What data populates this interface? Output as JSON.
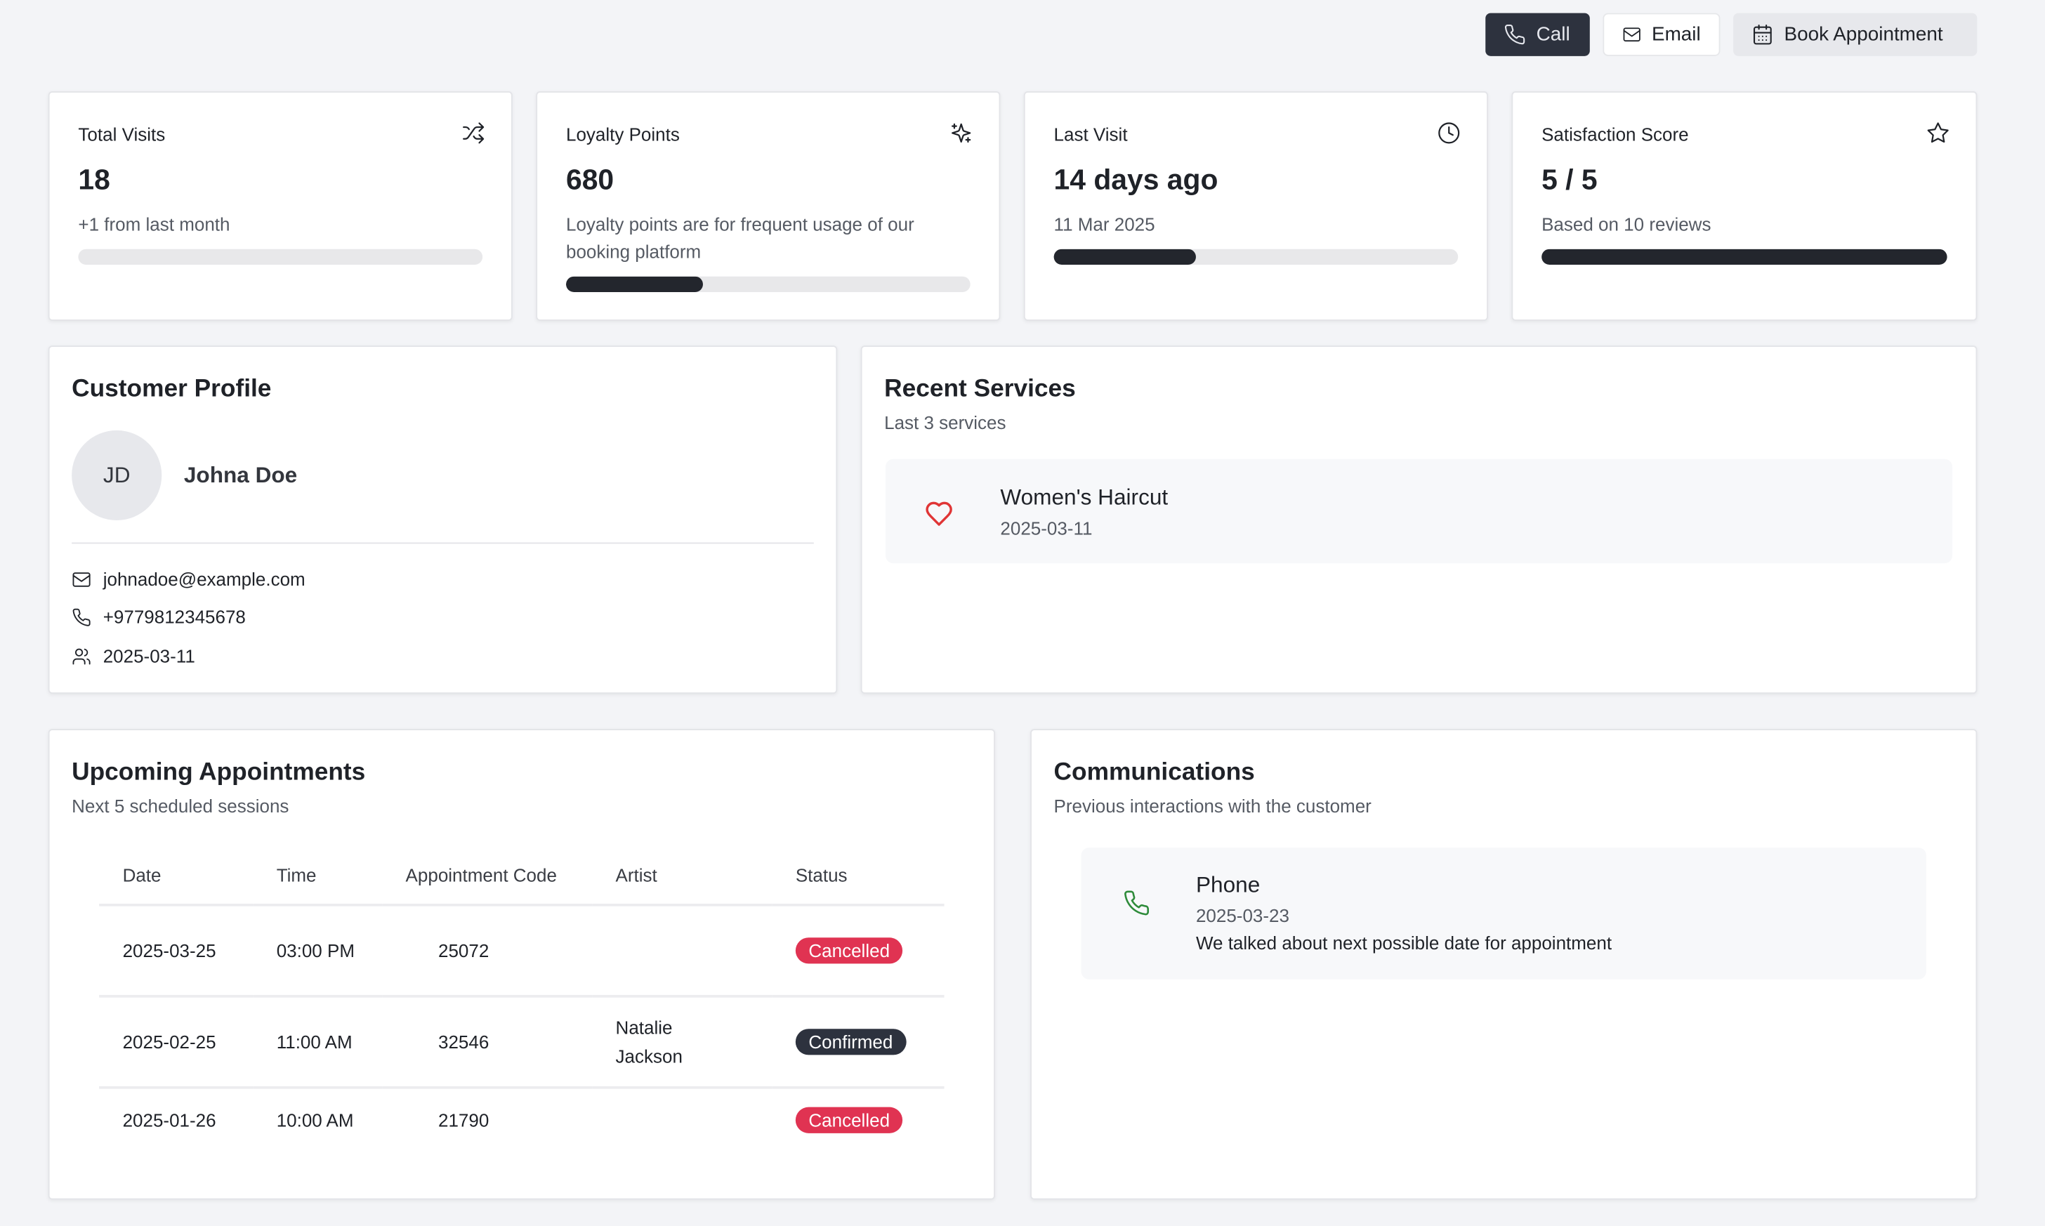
{
  "actions": {
    "call": "Call",
    "email": "Email",
    "book": "Book Appointment"
  },
  "stats": [
    {
      "label": "Total Visits",
      "icon": "shuffle-icon",
      "value": "18",
      "sub": "+1 from last month",
      "progress": 0
    },
    {
      "label": "Loyalty Points",
      "icon": "sparkles-icon",
      "value": "680",
      "sub": "Loyalty points are for frequent usage of our booking platform",
      "progress": 34
    },
    {
      "label": "Last Visit",
      "icon": "clock-icon",
      "value": "14 days ago",
      "sub": "11 Mar 2025",
      "progress": 35
    },
    {
      "label": "Satisfaction Score",
      "icon": "star-icon",
      "value": "5 / 5",
      "sub": "Based on 10 reviews",
      "progress": 100
    }
  ],
  "profile": {
    "title": "Customer Profile",
    "initials": "JD",
    "name": "Johna Doe",
    "email": "johnadoe@example.com",
    "phone": "+9779812345678",
    "date": "2025-03-11"
  },
  "services": {
    "title": "Recent Services",
    "subtitle": "Last 3 services",
    "items": [
      {
        "name": "Women's Haircut",
        "date": "2025-03-11",
        "icon": "heart-icon"
      }
    ]
  },
  "appointments": {
    "title": "Upcoming Appointments",
    "subtitle": "Next 5 scheduled sessions",
    "columns": [
      "Date",
      "Time",
      "Appointment Code",
      "Artist",
      "Status"
    ],
    "rows": [
      {
        "date": "2025-03-25",
        "time": "03:00 PM",
        "code": "25072",
        "artist": "",
        "status": "Cancelled"
      },
      {
        "date": "2025-02-25",
        "time": "11:00 AM",
        "code": "32546",
        "artist": "Natalie Jackson",
        "status": "Confirmed"
      },
      {
        "date": "2025-01-26",
        "time": "10:00 AM",
        "code": "21790",
        "artist": "",
        "status": "Cancelled"
      }
    ]
  },
  "communications": {
    "title": "Communications",
    "subtitle": "Previous interactions with the customer",
    "items": [
      {
        "type": "Phone",
        "date": "2025-03-23",
        "note": "We talked about next possible date for appointment"
      }
    ]
  },
  "colors": {
    "primary": "#2d323e",
    "cancelled": "#e03352",
    "confirmed": "#2d323e",
    "heart": "#e03535",
    "phone": "#2e8b3a"
  }
}
